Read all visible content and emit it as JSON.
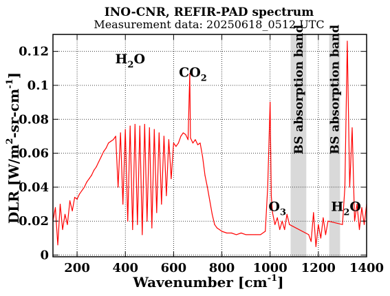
{
  "chart_data": {
    "type": "line",
    "title": "INO-CNR, REFIR-PAD spectrum",
    "subtitle": "Measurement data: 20250618_0512 UTC",
    "xlabel": {
      "main": "Wavenumber [cm",
      "sup": "-1",
      "tail": "]"
    },
    "ylabel": {
      "p1": "DLR [W/m",
      "sup1": "2",
      "p2": "-sr-cm",
      "sup2": "-1",
      "p3": "]"
    },
    "xlim": [
      100,
      1400
    ],
    "ylim": [
      -0.001,
      0.13
    ],
    "xticks": [
      200,
      400,
      600,
      800,
      1000,
      1200,
      1400
    ],
    "xtick_labels": [
      "200",
      "400",
      "600",
      "800",
      "1000",
      "1200",
      "1400"
    ],
    "yticks": [
      0,
      0.02,
      0.04,
      0.06,
      0.08,
      0.1,
      0.12
    ],
    "ytick_labels": [
      "0",
      "0.02",
      "0.04",
      "0.06",
      "0.08",
      "0.1",
      "0.12"
    ],
    "grid": true,
    "line_color": "#ff0000",
    "band_color": "#d9d9d9",
    "bands": [
      {
        "x": [
          1085,
          1150
        ],
        "label": "BS absorption band"
      },
      {
        "x": [
          1245,
          1290
        ],
        "label": "BS absorption band"
      }
    ],
    "annotations": [
      {
        "x": 420,
        "y": 0.113,
        "base": "H",
        "sub": "2",
        "tail": "O"
      },
      {
        "x": 680,
        "y": 0.105,
        "base": "CO",
        "sub": "2",
        "tail": ""
      },
      {
        "x": 1030,
        "y": 0.026,
        "base": "O",
        "sub": "3",
        "tail": ""
      },
      {
        "x": 1315,
        "y": 0.026,
        "base": "H",
        "sub": "2",
        "tail": "O"
      }
    ],
    "series": [
      {
        "x": [
          100,
          110,
          120,
          130,
          140,
          150,
          160,
          170,
          180,
          190,
          200,
          210,
          220,
          230,
          240,
          250,
          260,
          270,
          280,
          290,
          300,
          310,
          320,
          330,
          340,
          350,
          360,
          370,
          380,
          390,
          400,
          410,
          420,
          430,
          440,
          450,
          460,
          470,
          480,
          490,
          500,
          510,
          520,
          530,
          540,
          550,
          560,
          570,
          580,
          590,
          600,
          610,
          620,
          630,
          640,
          650,
          660,
          667,
          670,
          680,
          690,
          700,
          710,
          720,
          730,
          740,
          750,
          760,
          770,
          780,
          790,
          800,
          820,
          840,
          860,
          880,
          900,
          920,
          940,
          960,
          980,
          990,
          1000,
          1005,
          1010,
          1020,
          1030,
          1040,
          1050,
          1060,
          1070,
          1080,
          1160,
          1170,
          1180,
          1190,
          1200,
          1210,
          1220,
          1230,
          1240,
          1300,
          1310,
          1320,
          1330,
          1340,
          1350,
          1360,
          1370,
          1380,
          1390,
          1400
        ],
        "y": [
          0.02,
          0.028,
          0.006,
          0.03,
          0.015,
          0.024,
          0.018,
          0.032,
          0.026,
          0.034,
          0.033,
          0.036,
          0.038,
          0.04,
          0.043,
          0.045,
          0.047,
          0.05,
          0.052,
          0.055,
          0.058,
          0.061,
          0.063,
          0.066,
          0.067,
          0.068,
          0.07,
          0.04,
          0.072,
          0.03,
          0.074,
          0.02,
          0.076,
          0.015,
          0.077,
          0.018,
          0.076,
          0.012,
          0.077,
          0.02,
          0.075,
          0.016,
          0.074,
          0.025,
          0.072,
          0.03,
          0.07,
          0.035,
          0.068,
          0.045,
          0.066,
          0.064,
          0.066,
          0.07,
          0.072,
          0.071,
          0.068,
          0.107,
          0.069,
          0.066,
          0.068,
          0.065,
          0.066,
          0.058,
          0.047,
          0.04,
          0.032,
          0.024,
          0.018,
          0.016,
          0.015,
          0.014,
          0.013,
          0.013,
          0.012,
          0.013,
          0.012,
          0.012,
          0.012,
          0.012,
          0.014,
          0.04,
          0.09,
          0.035,
          0.025,
          0.018,
          0.022,
          0.015,
          0.02,
          0.015,
          0.024,
          0.018,
          0.012,
          0.008,
          0.025,
          0.005,
          0.018,
          0.01,
          0.022,
          0.012,
          0.02,
          0.018,
          0.04,
          0.126,
          0.04,
          0.075,
          0.02,
          0.03,
          0.015,
          0.028,
          0.018,
          0.03
        ]
      }
    ]
  }
}
